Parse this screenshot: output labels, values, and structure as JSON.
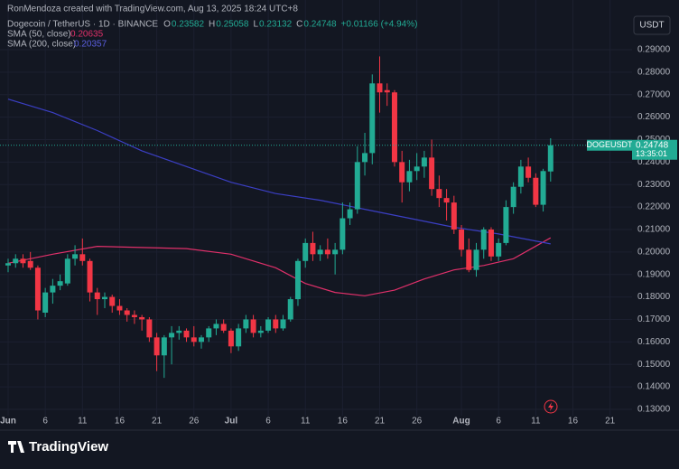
{
  "header": {
    "credit": "RonMendoza created with TradingView.com, Aug 13, 2025 18:24 UTC+8",
    "symbol": "Dogecoin / TetherUS · 1D · BINANCE",
    "ohlc_letters": [
      "O",
      "H",
      "L",
      "C"
    ],
    "change": "+0.01166 (+4.94%)",
    "currency": "USDT",
    "ticker": "DOGEUSDT",
    "countdown": "13:35:01",
    "brand": "TradingView"
  },
  "chart_data": {
    "type": "candlestick",
    "x": [
      0,
      1,
      2,
      3,
      4,
      5,
      6,
      7,
      8,
      9,
      10,
      11,
      12,
      13,
      14,
      15,
      16,
      17,
      18,
      19,
      20,
      21,
      22,
      23,
      24,
      25,
      26,
      27,
      28,
      29,
      30,
      31,
      32,
      33,
      34,
      35,
      36,
      37,
      38,
      39,
      40,
      41,
      42,
      43,
      44,
      45,
      46,
      47,
      48,
      49,
      50,
      51,
      52,
      53,
      54,
      55,
      56,
      57,
      58,
      59,
      60,
      61,
      62,
      63,
      64,
      65,
      66,
      67,
      68,
      69,
      70,
      71,
      72,
      73
    ],
    "open": [
      0.194,
      0.195,
      0.197,
      0.196,
      0.193,
      0.173,
      0.182,
      0.185,
      0.186,
      0.197,
      0.199,
      0.196,
      0.182,
      0.179,
      0.18,
      0.176,
      0.174,
      0.172,
      0.171,
      0.17,
      0.162,
      0.154,
      0.162,
      0.164,
      0.165,
      0.162,
      0.16,
      0.162,
      0.166,
      0.168,
      0.165,
      0.158,
      0.166,
      0.17,
      0.164,
      0.165,
      0.17,
      0.166,
      0.17,
      0.179,
      0.196,
      0.204,
      0.199,
      0.201,
      0.199,
      0.201,
      0.215,
      0.219,
      0.24,
      0.244,
      0.275,
      0.272,
      0.271,
      0.24,
      0.231,
      0.236,
      0.238,
      0.242,
      0.228,
      0.224,
      0.222,
      0.21,
      0.201,
      0.192,
      0.201,
      0.21,
      0.198,
      0.204,
      0.22,
      0.229,
      0.238,
      0.233,
      0.221,
      0.23582
    ],
    "high": [
      0.197,
      0.199,
      0.199,
      0.2,
      0.194,
      0.184,
      0.188,
      0.19,
      0.199,
      0.203,
      0.206,
      0.197,
      0.184,
      0.182,
      0.181,
      0.179,
      0.175,
      0.174,
      0.172,
      0.171,
      0.164,
      0.163,
      0.167,
      0.167,
      0.166,
      0.167,
      0.163,
      0.167,
      0.17,
      0.17,
      0.166,
      0.168,
      0.172,
      0.172,
      0.167,
      0.171,
      0.172,
      0.172,
      0.18,
      0.197,
      0.206,
      0.209,
      0.203,
      0.206,
      0.204,
      0.222,
      0.222,
      0.247,
      0.253,
      0.279,
      0.287,
      0.275,
      0.272,
      0.245,
      0.241,
      0.244,
      0.245,
      0.25,
      0.234,
      0.228,
      0.225,
      0.212,
      0.206,
      0.204,
      0.211,
      0.211,
      0.206,
      0.223,
      0.231,
      0.241,
      0.242,
      0.235,
      0.237,
      0.25058
    ],
    "low": [
      0.191,
      0.193,
      0.193,
      0.192,
      0.17,
      0.171,
      0.177,
      0.183,
      0.185,
      0.194,
      0.194,
      0.178,
      0.172,
      0.175,
      0.173,
      0.172,
      0.169,
      0.168,
      0.165,
      0.16,
      0.147,
      0.144,
      0.15,
      0.161,
      0.16,
      0.158,
      0.157,
      0.16,
      0.163,
      0.164,
      0.155,
      0.156,
      0.164,
      0.162,
      0.162,
      0.164,
      0.164,
      0.165,
      0.169,
      0.176,
      0.193,
      0.196,
      0.196,
      0.197,
      0.19,
      0.199,
      0.212,
      0.217,
      0.234,
      0.239,
      0.262,
      0.265,
      0.238,
      0.222,
      0.227,
      0.232,
      0.233,
      0.225,
      0.22,
      0.214,
      0.208,
      0.198,
      0.191,
      0.189,
      0.197,
      0.196,
      0.196,
      0.203,
      0.217,
      0.226,
      0.231,
      0.22,
      0.218,
      0.23132
    ],
    "close": [
      0.195,
      0.197,
      0.195,
      0.193,
      0.174,
      0.182,
      0.185,
      0.187,
      0.197,
      0.199,
      0.196,
      0.182,
      0.179,
      0.18,
      0.176,
      0.174,
      0.172,
      0.171,
      0.17,
      0.162,
      0.154,
      0.162,
      0.164,
      0.165,
      0.162,
      0.16,
      0.162,
      0.166,
      0.168,
      0.165,
      0.158,
      0.166,
      0.17,
      0.164,
      0.165,
      0.17,
      0.166,
      0.17,
      0.179,
      0.196,
      0.204,
      0.199,
      0.201,
      0.199,
      0.201,
      0.215,
      0.219,
      0.24,
      0.244,
      0.275,
      0.271,
      0.271,
      0.24,
      0.231,
      0.236,
      0.238,
      0.242,
      0.228,
      0.224,
      0.222,
      0.21,
      0.201,
      0.192,
      0.201,
      0.21,
      0.198,
      0.204,
      0.22,
      0.229,
      0.238,
      0.233,
      0.221,
      0.236,
      0.24748
    ],
    "up_color": "#22ab94",
    "down_color": "#f23645",
    "series": [
      {
        "name": "SMA (50, close)",
        "color": "#e0306a",
        "last": 0.20635,
        "x": [
          0,
          6,
          12,
          18,
          24,
          30,
          36,
          40,
          44,
          48,
          52,
          56,
          60,
          64,
          68,
          73
        ],
        "values": [
          0.195,
          0.199,
          0.2025,
          0.202,
          0.2015,
          0.199,
          0.193,
          0.186,
          0.182,
          0.1805,
          0.183,
          0.188,
          0.192,
          0.194,
          0.197,
          0.2063
        ]
      },
      {
        "name": "SMA (200, close)",
        "color": "#3b3fc4",
        "last": 0.20357,
        "x": [
          0,
          6,
          12,
          18,
          24,
          30,
          36,
          42,
          48,
          54,
          60,
          66,
          73
        ],
        "values": [
          0.268,
          0.262,
          0.254,
          0.245,
          0.238,
          0.231,
          0.226,
          0.223,
          0.219,
          0.215,
          0.211,
          0.208,
          0.2036
        ]
      }
    ],
    "xlim": [
      -1.094,
      83.96
    ],
    "xticks": [
      {
        "value": 0,
        "label": "Jun"
      },
      {
        "value": 5,
        "label": "6"
      },
      {
        "value": 10,
        "label": "11"
      },
      {
        "value": 15,
        "label": "16"
      },
      {
        "value": 20,
        "label": "21"
      },
      {
        "value": 25,
        "label": "26"
      },
      {
        "value": 30,
        "label": "Jul"
      },
      {
        "value": 35,
        "label": "6"
      },
      {
        "value": 40,
        "label": "11"
      },
      {
        "value": 45,
        "label": "16"
      },
      {
        "value": 50,
        "label": "21"
      },
      {
        "value": 55,
        "label": "26"
      },
      {
        "value": 61,
        "label": "Aug"
      },
      {
        "value": 66,
        "label": "6"
      },
      {
        "value": 71,
        "label": "11"
      },
      {
        "value": 76,
        "label": "16"
      },
      {
        "value": 81,
        "label": "21"
      }
    ],
    "ylim": [
      0.12717,
      0.3121
    ],
    "yticks": [
      {
        "value": 0.13,
        "label": "0.13000"
      },
      {
        "value": 0.14,
        "label": "0.14000"
      },
      {
        "value": 0.15,
        "label": "0.15000"
      },
      {
        "value": 0.16,
        "label": "0.16000"
      },
      {
        "value": 0.17,
        "label": "0.17000"
      },
      {
        "value": 0.18,
        "label": "0.18000"
      },
      {
        "value": 0.19,
        "label": "0.19000"
      },
      {
        "value": 0.2,
        "label": "0.20000"
      },
      {
        "value": 0.21,
        "label": "0.21000"
      },
      {
        "value": 0.22,
        "label": "0.22000"
      },
      {
        "value": 0.23,
        "label": "0.23000"
      },
      {
        "value": 0.24,
        "label": "0.24000"
      },
      {
        "value": 0.25,
        "label": "0.25000"
      },
      {
        "value": 0.26,
        "label": "0.26000"
      },
      {
        "value": 0.27,
        "label": "0.27000"
      },
      {
        "value": 0.28,
        "label": "0.28000"
      },
      {
        "value": 0.29,
        "label": "0.29000"
      }
    ],
    "grid": true
  }
}
